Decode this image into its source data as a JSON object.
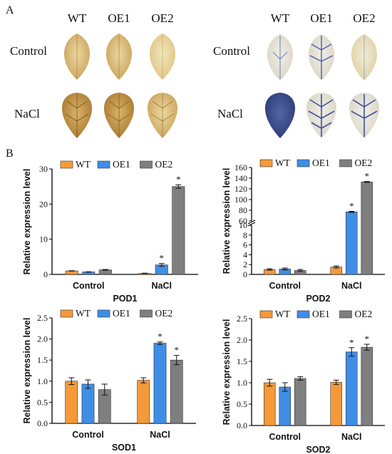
{
  "panel_a_label": "A",
  "panel_b_label": "B",
  "leaf_panels": [
    {
      "columns": [
        "WT",
        "OE1",
        "OE2"
      ],
      "rows": [
        "Control",
        "NaCl"
      ]
    },
    {
      "columns": [
        "WT",
        "OE1",
        "OE2"
      ],
      "rows": [
        "Control",
        "NaCl"
      ]
    }
  ],
  "colors": {
    "WT": "#f59a3a",
    "OE1": "#3f8ee6",
    "OE2": "#7f7f7f",
    "dab": "#c9a25a",
    "nbt": "#3c4f92"
  },
  "chart_data": [
    {
      "type": "bar",
      "title": "POD1",
      "ylabel": "Relative expression level",
      "categories": [
        "Control",
        "NaCl"
      ],
      "ylim": [
        0,
        30
      ],
      "yticks": [
        0,
        10,
        20,
        30
      ],
      "legend": "top",
      "series": [
        {
          "name": "WT",
          "values": [
            1.0,
            0.3
          ],
          "errors": [
            0.05,
            0.05
          ]
        },
        {
          "name": "OE1",
          "values": [
            0.7,
            2.7
          ],
          "errors": [
            0.05,
            0.4
          ]
        },
        {
          "name": "OE2",
          "values": [
            1.3,
            25.0
          ],
          "errors": [
            0.1,
            0.5
          ]
        }
      ],
      "significance": [
        null,
        [
          "",
          "*",
          "*"
        ]
      ]
    },
    {
      "type": "bar",
      "title": "POD2",
      "ylabel": "Relative expression level",
      "categories": [
        "Control",
        "NaCl"
      ],
      "ylim": [
        0,
        160
      ],
      "axis_break": [
        10,
        60
      ],
      "yticks": [
        0,
        2,
        4,
        6,
        8,
        10,
        60,
        80,
        100,
        120,
        140,
        160
      ],
      "legend": "top",
      "series": [
        {
          "name": "WT",
          "values": [
            1.0,
            1.5
          ],
          "errors": [
            0.15,
            0.2
          ]
        },
        {
          "name": "OE1",
          "values": [
            1.1,
            77
          ],
          "errors": [
            0.2,
            1.0
          ]
        },
        {
          "name": "OE2",
          "values": [
            0.8,
            133
          ],
          "errors": [
            0.2,
            0.8
          ]
        }
      ],
      "significance": [
        null,
        [
          "",
          "*",
          "*"
        ]
      ]
    },
    {
      "type": "bar",
      "title": "SOD1",
      "ylabel": "Relative expression level",
      "categories": [
        "Control",
        "NaCl"
      ],
      "ylim": [
        0,
        2.5
      ],
      "yticks": [
        0.0,
        0.5,
        1.0,
        1.5,
        2.0,
        2.5
      ],
      "legend": "top",
      "series": [
        {
          "name": "WT",
          "values": [
            1.0,
            1.02
          ],
          "errors": [
            0.08,
            0.06
          ]
        },
        {
          "name": "OE1",
          "values": [
            0.93,
            1.9
          ],
          "errors": [
            0.1,
            0.03
          ]
        },
        {
          "name": "OE2",
          "values": [
            0.8,
            1.5
          ],
          "errors": [
            0.13,
            0.11
          ]
        }
      ],
      "significance": [
        null,
        [
          "",
          "*",
          "*"
        ]
      ]
    },
    {
      "type": "bar",
      "title": "SOD2",
      "ylabel": "Relative expression level",
      "categories": [
        "Control",
        "NaCl"
      ],
      "ylim": [
        0,
        2.5
      ],
      "yticks": [
        0.0,
        0.5,
        1.0,
        1.5,
        2.0,
        2.5
      ],
      "legend": "top",
      "series": [
        {
          "name": "WT",
          "values": [
            1.0,
            1.01
          ],
          "errors": [
            0.08,
            0.05
          ]
        },
        {
          "name": "OE1",
          "values": [
            0.9,
            1.72
          ],
          "errors": [
            0.1,
            0.1
          ]
        },
        {
          "name": "OE2",
          "values": [
            1.1,
            1.83
          ],
          "errors": [
            0.04,
            0.07
          ]
        }
      ],
      "significance": [
        null,
        [
          "",
          "*",
          "*"
        ]
      ]
    }
  ]
}
